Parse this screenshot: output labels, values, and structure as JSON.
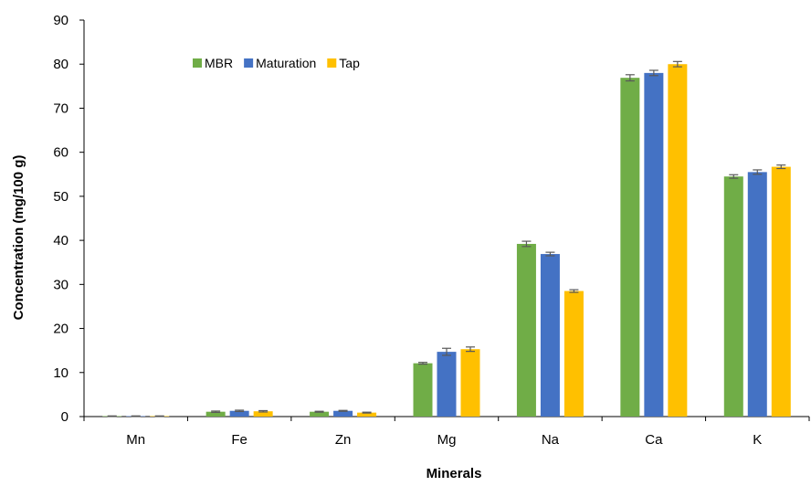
{
  "chart_data": {
    "type": "bar",
    "title": "",
    "xlabel": "Minerals",
    "ylabel": "Concentration (mg/100 g)",
    "ylim": [
      0,
      90
    ],
    "yticks": [
      0,
      10,
      20,
      30,
      40,
      50,
      60,
      70,
      80,
      90
    ],
    "grid": false,
    "legend_position": "top-left",
    "categories": [
      "Mn",
      "Fe",
      "Zn",
      "Mg",
      "Na",
      "Ca",
      "K"
    ],
    "series": [
      {
        "name": "MBR",
        "color": "#70ad47",
        "values": [
          0.1,
          1.1,
          1.1,
          12.1,
          39.2,
          76.9,
          54.5
        ],
        "errors": [
          0.05,
          0.15,
          0.1,
          0.2,
          0.6,
          0.7,
          0.4
        ]
      },
      {
        "name": "Maturation",
        "color": "#4472c4",
        "values": [
          0.1,
          1.3,
          1.3,
          14.7,
          36.9,
          78.0,
          55.5
        ],
        "errors": [
          0.05,
          0.15,
          0.1,
          0.8,
          0.4,
          0.6,
          0.5
        ]
      },
      {
        "name": "Tap",
        "color": "#ffc000",
        "values": [
          0.1,
          1.2,
          0.9,
          15.3,
          28.5,
          80.0,
          56.7
        ],
        "errors": [
          0.05,
          0.15,
          0.1,
          0.5,
          0.3,
          0.6,
          0.4
        ]
      }
    ],
    "error_bar_color": "#595959",
    "axis_color": "#000000"
  }
}
